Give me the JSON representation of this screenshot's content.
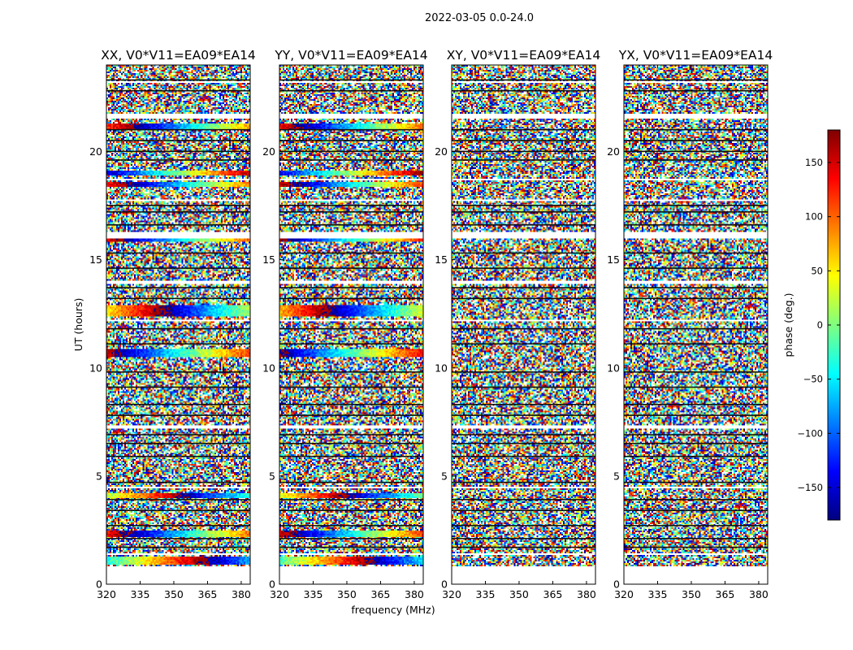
{
  "figure_title": "2022-03-05 0.0-24.0",
  "chart_data": {
    "type": "heatmap",
    "title": "2022-03-05 0.0-24.0",
    "xlabel": "frequency (MHz)",
    "ylabel": "UT (hours)",
    "xlim": [
      320,
      384
    ],
    "ylim": [
      0,
      24
    ],
    "x_ticks": [
      320,
      335,
      350,
      365,
      380
    ],
    "y_ticks": [
      0,
      5,
      10,
      15,
      20
    ],
    "colormap": "jet",
    "colorbar": {
      "label": "phase (deg.)",
      "range": [
        -180,
        180
      ],
      "ticks": [
        -150,
        -100,
        -50,
        0,
        50,
        100,
        150
      ],
      "tick_labels": [
        "−150",
        "−100",
        "−50",
        "0",
        "50",
        "100",
        "150"
      ],
      "colors": [
        "#00007f",
        "#0000ff",
        "#007fff",
        "#00ffff",
        "#7fff7f",
        "#ffff00",
        "#ff7f00",
        "#ff0000",
        "#7f0000"
      ]
    },
    "panels": [
      {
        "title": "XX, V0*V11=EA09*EA14",
        "show_ylabel": true,
        "show_xlabel": false,
        "coherent_bands": [
          [
            0.9,
            1.3
          ],
          [
            2.2,
            2.5
          ],
          [
            4.0,
            4.2
          ],
          [
            10.5,
            10.9
          ],
          [
            12.4,
            12.9
          ],
          [
            15.8,
            16.1
          ],
          [
            18.4,
            18.6
          ],
          [
            18.9,
            19.1
          ],
          [
            21.0,
            21.3
          ]
        ]
      },
      {
        "title": "YY, V0*V11=EA09*EA14",
        "show_ylabel": false,
        "show_xlabel": true,
        "coherent_bands": [
          [
            0.9,
            1.3
          ],
          [
            2.2,
            2.5
          ],
          [
            4.0,
            4.2
          ],
          [
            10.5,
            10.9
          ],
          [
            12.4,
            12.9
          ],
          [
            15.8,
            16.1
          ],
          [
            18.4,
            18.6
          ],
          [
            18.9,
            19.1
          ],
          [
            21.0,
            21.3
          ]
        ]
      },
      {
        "title": "XY, V0*V11=EA09*EA14",
        "show_ylabel": false,
        "show_xlabel": false,
        "coherent_bands": []
      },
      {
        "title": "YX, V0*V11=EA09*EA14",
        "show_ylabel": false,
        "show_xlabel": false,
        "coherent_bands": []
      }
    ],
    "flagged_gaps_hours": [
      [
        0,
        0.85
      ],
      [
        1.35,
        1.45
      ],
      [
        4.4,
        4.5
      ],
      [
        7.2,
        7.35
      ],
      [
        12.15,
        12.2
      ],
      [
        13.9,
        14.0
      ],
      [
        16.0,
        16.25
      ],
      [
        17.7,
        17.8
      ],
      [
        18.7,
        18.75
      ],
      [
        21.5,
        21.75
      ],
      [
        22.25,
        22.3
      ],
      [
        23.2,
        23.25
      ]
    ],
    "dark_rows_hours": [
      1.7,
      2.1,
      2.7,
      3.4,
      3.9,
      4.7,
      5.9,
      6.5,
      6.9,
      7.8,
      8.3,
      9.1,
      9.8,
      11.1,
      11.8,
      13.2,
      13.7,
      14.6,
      15.3,
      16.6,
      17.2,
      17.5,
      19.6,
      20.0,
      20.5,
      21.0,
      22.8,
      23.3
    ]
  }
}
